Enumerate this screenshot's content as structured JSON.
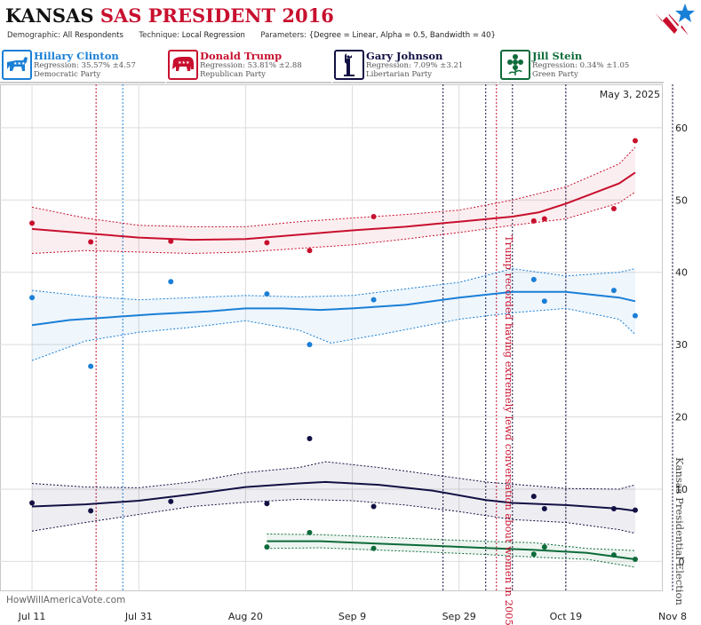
{
  "header": {
    "title_state": "KANSAS",
    "title_rest": "SAS PRESIDENT 2016",
    "demographic_label": "Demographic:",
    "demographic_value": "All Respondents",
    "technique_label": "Technique:",
    "technique_value": "Local Regression",
    "parameters_label": "Parameters:",
    "parameters_value": "{Degree = Linear, Alpha = 0.5, Bandwidth = 40}"
  },
  "candidates": [
    {
      "name": "Hillary Clinton",
      "regression": "Regression: 35.57% ±4.57",
      "party": "Democratic Party",
      "color": "#1a7fd6",
      "icon": "donkey-icon"
    },
    {
      "name": "Donald Trump",
      "regression": "Regression: 53.81% ±2.88",
      "party": "Republican Party",
      "color": "#c8102e",
      "icon": "elephant-icon"
    },
    {
      "name": "Gary Johnson",
      "regression": "Regression: 7.09% ±3.21",
      "party": "Libertarian Party",
      "color": "#131044",
      "icon": "statue-of-liberty-icon"
    },
    {
      "name": "Jill Stein",
      "regression": "Regression: 0.34% ±1.05",
      "party": "Green Party",
      "color": "#0d6b3a",
      "icon": "flower-icon"
    }
  ],
  "chart_data": {
    "type": "scatter",
    "date_label": "May 3, 2025",
    "source": "HowWillAmericaVote.com",
    "x_ticks": [
      "Jul 11",
      "Jul 31",
      "Aug 20",
      "Sep 9",
      "Sep 29",
      "Oct 19",
      "Nov 8"
    ],
    "y_ticks": [
      0,
      10,
      20,
      30,
      40,
      50,
      60
    ],
    "ylim": [
      -4,
      66
    ],
    "xlim_days_from_jul11": [
      -6,
      118
    ],
    "annotations": [
      {
        "text": "Trump recorded having extremely lewd conversation about women in 2005",
        "x": "Oct 7",
        "color": "#c8102e"
      },
      {
        "text": "Kansas Presidential Election",
        "x": "Nov 8",
        "color": "#444444"
      }
    ],
    "vlines": [
      {
        "x": "Jul 23",
        "color": "#c8102e"
      },
      {
        "x": "Jul 28",
        "color": "#1a7fd6"
      },
      {
        "x": "Sep 26",
        "color": "#131044"
      },
      {
        "x": "Oct 4",
        "color": "#131044"
      },
      {
        "x": "Oct 6",
        "color": "#c8102e"
      },
      {
        "x": "Oct 9",
        "color": "#131044"
      },
      {
        "x": "Oct 19",
        "color": "#131044"
      },
      {
        "x": "Nov 8",
        "color": "#131044"
      }
    ],
    "series": [
      {
        "name": "Hillary Clinton",
        "color": "#1a7fd6",
        "points": [
          [
            "Jul 11",
            36.5
          ],
          [
            "Jul 22",
            27
          ],
          [
            "Aug 6",
            38.7
          ],
          [
            "Aug 24",
            37
          ],
          [
            "Sep 1",
            30
          ],
          [
            "Sep 13",
            36.2
          ],
          [
            "Oct 13",
            39
          ],
          [
            "Oct 15",
            36
          ],
          [
            "Oct 28",
            37.5
          ],
          [
            "Nov 1",
            34
          ]
        ],
        "trend": [
          [
            "Jul 11",
            32.7
          ],
          [
            "Jul 18",
            33.4
          ],
          [
            "Jul 26",
            33.8
          ],
          [
            "Aug 3",
            34.2
          ],
          [
            "Aug 13",
            34.6
          ],
          [
            "Aug 20",
            35
          ],
          [
            "Aug 27",
            35
          ],
          [
            "Sep 3",
            34.8
          ],
          [
            "Sep 9",
            35
          ],
          [
            "Sep 19",
            35.5
          ],
          [
            "Sep 29",
            36.5
          ],
          [
            "Oct 9",
            37.3
          ],
          [
            "Oct 19",
            37.3
          ],
          [
            "Oct 29",
            36.5
          ],
          [
            "Nov 1",
            36
          ]
        ],
        "upper": [
          [
            "Jul 11",
            37.5
          ],
          [
            "Jul 21",
            36.7
          ],
          [
            "Jul 31",
            36.2
          ],
          [
            "Aug 10",
            36.5
          ],
          [
            "Aug 20",
            36.8
          ],
          [
            "Aug 30",
            36.6
          ],
          [
            "Sep 9",
            36.8
          ],
          [
            "Sep 19",
            37.7
          ],
          [
            "Sep 29",
            38.6
          ],
          [
            "Oct 9",
            40.5
          ],
          [
            "Oct 19",
            39.5
          ],
          [
            "Oct 29",
            40
          ],
          [
            "Nov 1",
            40.5
          ]
        ],
        "lower": [
          [
            "Jul 11",
            27.8
          ],
          [
            "Jul 21",
            30.5
          ],
          [
            "Jul 31",
            31.7
          ],
          [
            "Aug 10",
            32.4
          ],
          [
            "Aug 20",
            33.3
          ],
          [
            "Aug 30",
            32
          ],
          [
            "Sep 5",
            30.2
          ],
          [
            "Sep 15",
            31.5
          ],
          [
            "Sep 29",
            33.5
          ],
          [
            "Oct 9",
            34.4
          ],
          [
            "Oct 19",
            35
          ],
          [
            "Oct 29",
            33.5
          ],
          [
            "Nov 1",
            31.4
          ]
        ]
      },
      {
        "name": "Donald Trump",
        "color": "#c8102e",
        "points": [
          [
            "Jul 11",
            46.8
          ],
          [
            "Jul 22",
            44.2
          ],
          [
            "Aug 6",
            44.3
          ],
          [
            "Aug 24",
            44.1
          ],
          [
            "Sep 1",
            43
          ],
          [
            "Sep 13",
            47.7
          ],
          [
            "Oct 13",
            47.1
          ],
          [
            "Oct 15",
            47.4
          ],
          [
            "Oct 28",
            48.8
          ],
          [
            "Nov 1",
            58.2
          ]
        ],
        "trend": [
          [
            "Jul 11",
            46
          ],
          [
            "Jul 21",
            45.4
          ],
          [
            "Jul 31",
            44.8
          ],
          [
            "Aug 10",
            44.5
          ],
          [
            "Aug 20",
            44.6
          ],
          [
            "Aug 30",
            45.2
          ],
          [
            "Sep 9",
            45.8
          ],
          [
            "Sep 19",
            46.3
          ],
          [
            "Sep 29",
            47
          ],
          [
            "Oct 9",
            47.7
          ],
          [
            "Oct 14",
            48.3
          ],
          [
            "Oct 19",
            49.5
          ],
          [
            "Oct 29",
            52.3
          ],
          [
            "Nov 1",
            53.8
          ]
        ],
        "upper": [
          [
            "Jul 11",
            49
          ],
          [
            "Jul 21",
            47.5
          ],
          [
            "Jul 31",
            46.5
          ],
          [
            "Aug 10",
            46.3
          ],
          [
            "Aug 20",
            46.3
          ],
          [
            "Aug 30",
            47
          ],
          [
            "Sep 9",
            47.5
          ],
          [
            "Sep 19",
            48
          ],
          [
            "Sep 29",
            48.6
          ],
          [
            "Oct 9",
            50
          ],
          [
            "Oct 19",
            51.8
          ],
          [
            "Oct 29",
            55
          ],
          [
            "Nov 1",
            57.3
          ]
        ],
        "lower": [
          [
            "Jul 11",
            42.6
          ],
          [
            "Jul 21",
            43
          ],
          [
            "Jul 31",
            42.8
          ],
          [
            "Aug 10",
            42.6
          ],
          [
            "Aug 20",
            42.8
          ],
          [
            "Aug 30",
            43.3
          ],
          [
            "Sep 9",
            43.8
          ],
          [
            "Sep 19",
            44.6
          ],
          [
            "Sep 29",
            45.5
          ],
          [
            "Oct 9",
            46.5
          ],
          [
            "Oct 19",
            47.4
          ],
          [
            "Oct 29",
            49.6
          ],
          [
            "Nov 1",
            51.1
          ]
        ]
      },
      {
        "name": "Gary Johnson",
        "color": "#131044",
        "points": [
          [
            "Jul 11",
            8.1
          ],
          [
            "Jul 22",
            7
          ],
          [
            "Aug 6",
            8.3
          ],
          [
            "Aug 24",
            8
          ],
          [
            "Sep 1",
            17
          ],
          [
            "Sep 13",
            7.6
          ],
          [
            "Oct 13",
            9
          ],
          [
            "Oct 15",
            7.3
          ],
          [
            "Oct 28",
            7.3
          ],
          [
            "Nov 1",
            7.1
          ]
        ],
        "trend": [
          [
            "Jul 11",
            7.6
          ],
          [
            "Jul 21",
            7.9
          ],
          [
            "Jul 31",
            8.4
          ],
          [
            "Aug 10",
            9.3
          ],
          [
            "Aug 20",
            10.3
          ],
          [
            "Aug 30",
            10.8
          ],
          [
            "Sep 4",
            11
          ],
          [
            "Sep 14",
            10.6
          ],
          [
            "Sep 24",
            9.8
          ],
          [
            "Oct 4",
            8.5
          ],
          [
            "Oct 9",
            8.1
          ],
          [
            "Oct 19",
            7.8
          ],
          [
            "Oct 29",
            7.3
          ],
          [
            "Nov 1",
            7
          ]
        ],
        "upper": [
          [
            "Jul 11",
            10.8
          ],
          [
            "Jul 21",
            10.3
          ],
          [
            "Jul 31",
            10.2
          ],
          [
            "Aug 10",
            11
          ],
          [
            "Aug 20",
            12.3
          ],
          [
            "Aug 30",
            13
          ],
          [
            "Sep 4",
            13.8
          ],
          [
            "Sep 14",
            13
          ],
          [
            "Sep 24",
            12
          ],
          [
            "Oct 4",
            11
          ],
          [
            "Oct 19",
            10.1
          ],
          [
            "Oct 29",
            10
          ],
          [
            "Nov 1",
            10.6
          ]
        ],
        "lower": [
          [
            "Jul 11",
            4.2
          ],
          [
            "Jul 21",
            5.4
          ],
          [
            "Jul 31",
            6.5
          ],
          [
            "Aug 10",
            7.6
          ],
          [
            "Aug 20",
            8.2
          ],
          [
            "Aug 30",
            8.6
          ],
          [
            "Sep 9",
            8.4
          ],
          [
            "Sep 19",
            7.8
          ],
          [
            "Sep 29",
            6.9
          ],
          [
            "Oct 9",
            5.8
          ],
          [
            "Oct 19",
            5.4
          ],
          [
            "Oct 29",
            4.4
          ],
          [
            "Nov 1",
            3.9
          ]
        ]
      },
      {
        "name": "Jill Stein",
        "color": "#0d6b3a",
        "points": [
          [
            "Aug 24",
            2
          ],
          [
            "Sep 1",
            4
          ],
          [
            "Sep 13",
            1.8
          ],
          [
            "Oct 13",
            1
          ],
          [
            "Oct 15",
            2
          ],
          [
            "Oct 28",
            0.9
          ],
          [
            "Nov 1",
            0.3
          ]
        ],
        "trend": [
          [
            "Aug 24",
            2.8
          ],
          [
            "Sep 3",
            2.8
          ],
          [
            "Sep 13",
            2.5
          ],
          [
            "Sep 23",
            2.2
          ],
          [
            "Oct 3",
            1.9
          ],
          [
            "Oct 13",
            1.6
          ],
          [
            "Oct 23",
            1.2
          ],
          [
            "Nov 1",
            0.3
          ]
        ],
        "upper": [
          [
            "Aug 24",
            3.8
          ],
          [
            "Sep 3",
            3.7
          ],
          [
            "Sep 13",
            3.4
          ],
          [
            "Sep 23",
            3.1
          ],
          [
            "Oct 3",
            2.8
          ],
          [
            "Oct 13",
            2.6
          ],
          [
            "Oct 23",
            1.8
          ],
          [
            "Nov 1",
            1.5
          ]
        ],
        "lower": [
          [
            "Aug 24",
            1.8
          ],
          [
            "Sep 3",
            1.9
          ],
          [
            "Sep 13",
            1.6
          ],
          [
            "Sep 23",
            1.3
          ],
          [
            "Oct 3",
            1
          ],
          [
            "Oct 13",
            0.6
          ],
          [
            "Oct 23",
            0.3
          ],
          [
            "Nov 1",
            -0.8
          ]
        ]
      }
    ]
  }
}
